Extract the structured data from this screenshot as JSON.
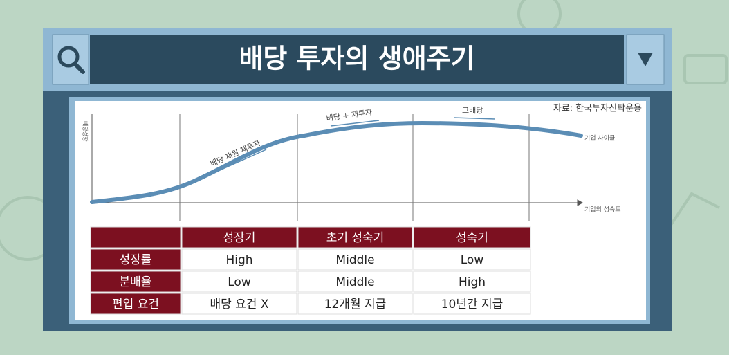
{
  "header": {
    "title": "배당 투자의 생애주기"
  },
  "source": "자료: 한국투자신탁운용",
  "diagram": {
    "y_axis_label": "배당성향",
    "x_axis_label": "기업의 성숙도",
    "curve_label": "기업 사이클",
    "stage_labels": [
      "배당 재원 재투자",
      "배당 + 재투자",
      "고배당"
    ]
  },
  "table": {
    "columns": [
      "성장기",
      "초기 성숙기",
      "성숙기"
    ],
    "rows": [
      {
        "label": "성장률",
        "cells": [
          "High",
          "Middle",
          "Low"
        ]
      },
      {
        "label": "분배율",
        "cells": [
          "Low",
          "Middle",
          "High"
        ]
      },
      {
        "label": "편입 요건",
        "cells": [
          "배당 요건 X",
          "12개월 지급",
          "10년간 지급"
        ]
      }
    ]
  }
}
